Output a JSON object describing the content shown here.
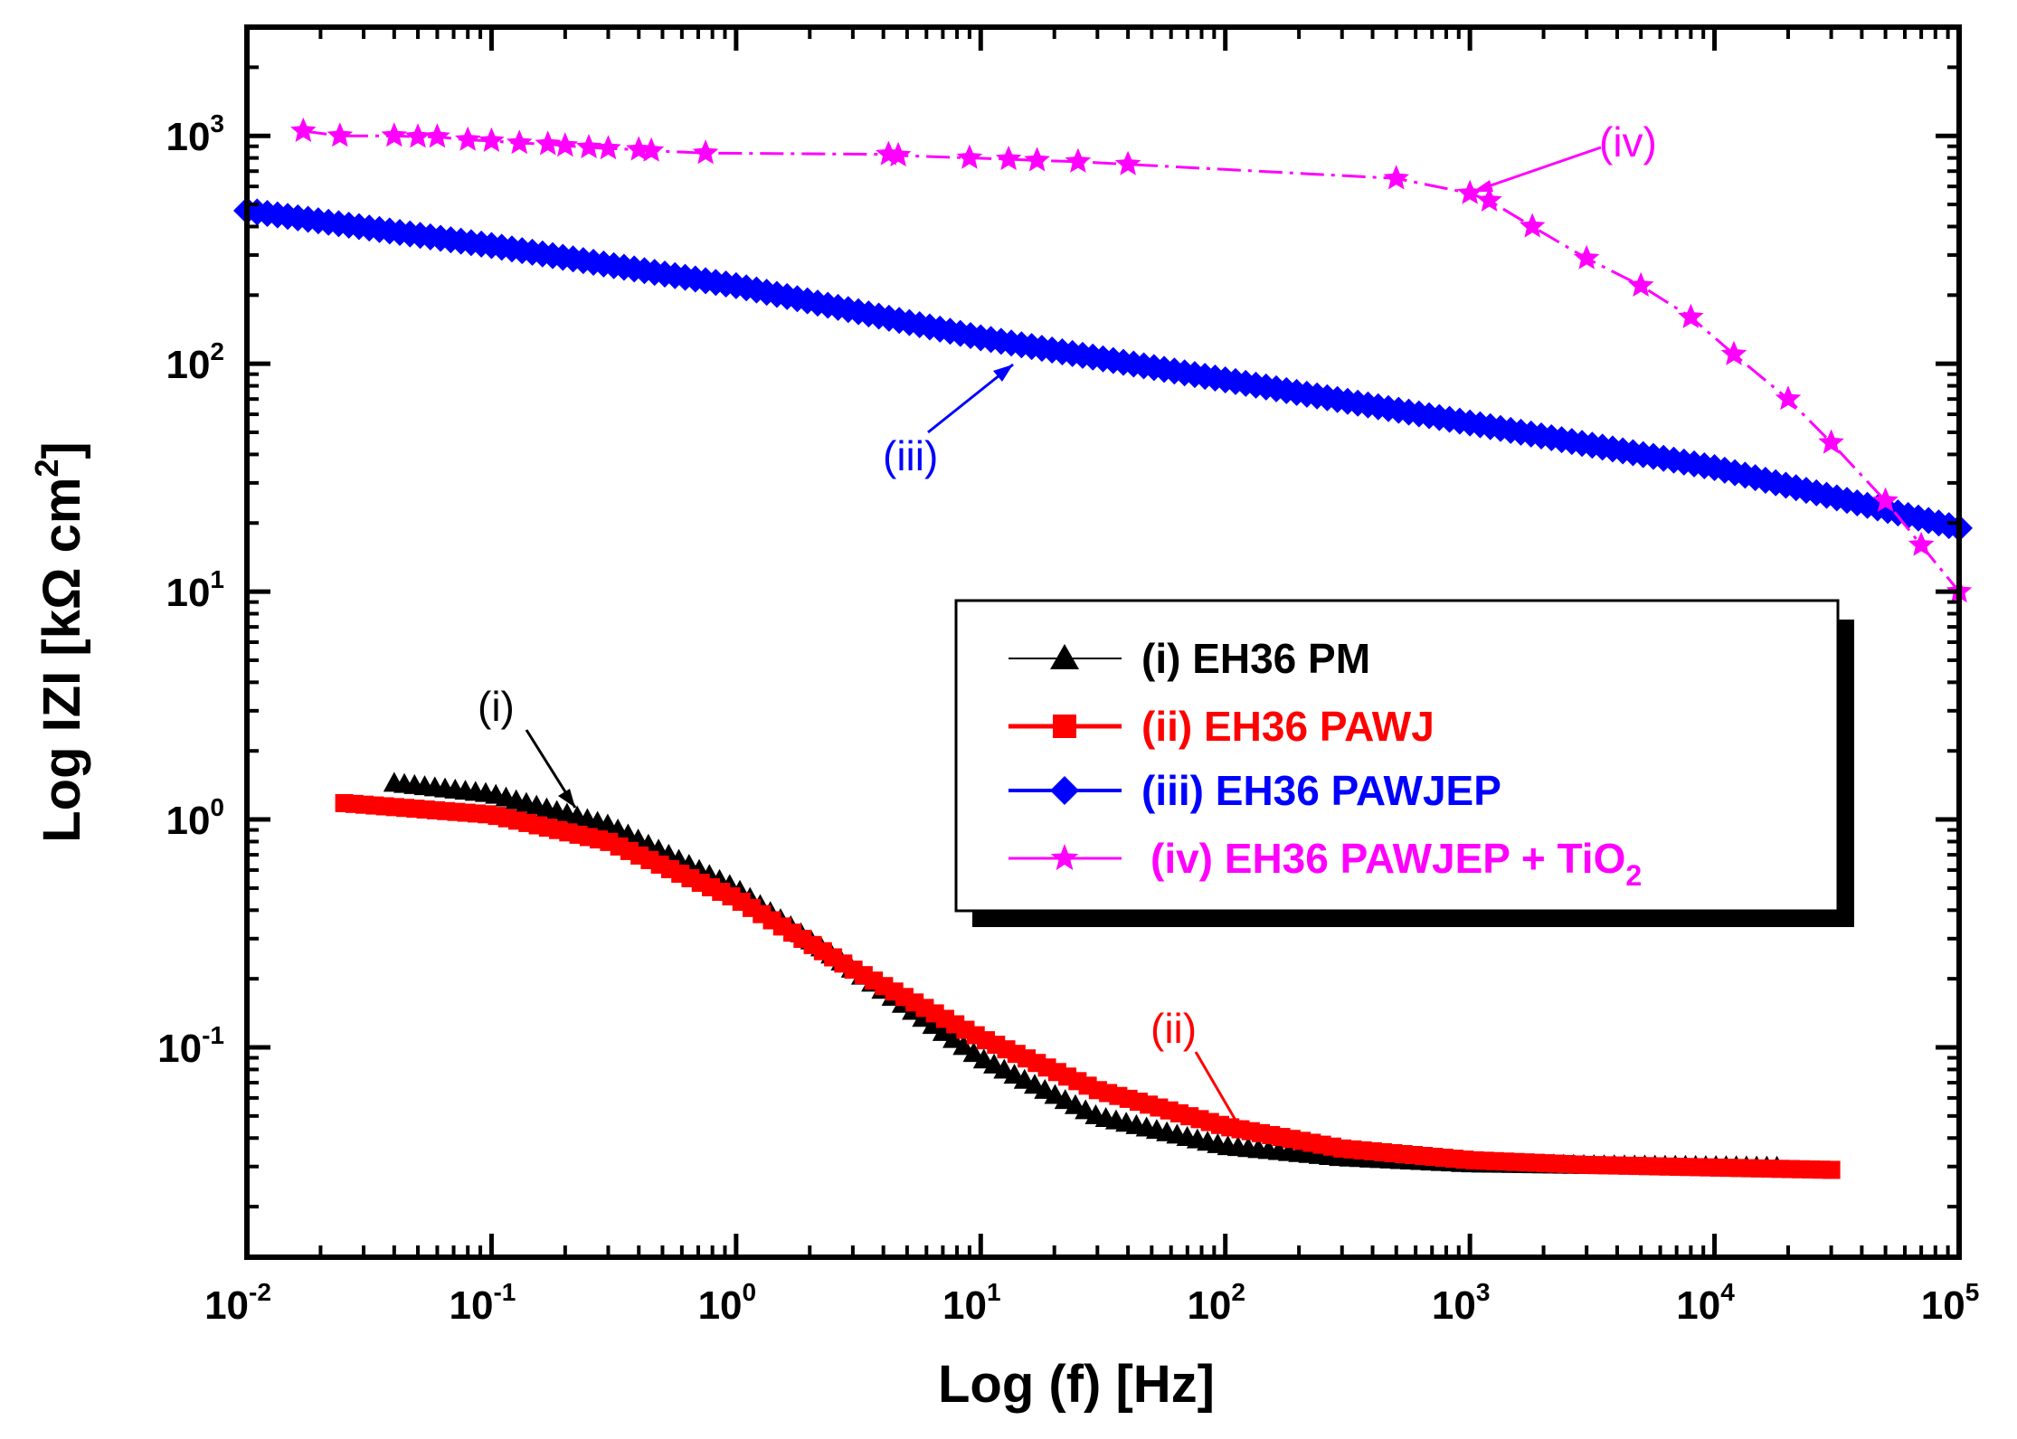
{
  "chart_data": {
    "type": "scatter",
    "xlabel": "Log (f) [Hz]",
    "ylabel": "Log IZI [kΩ cm²]",
    "ylabel_parts": {
      "main": "Log IZI [kΩ cm",
      "sup": "2",
      "close": "]"
    },
    "x_scale": "log",
    "y_scale": "log",
    "xlim": [
      0.01,
      100000
    ],
    "ylim": [
      0.012,
      3000
    ],
    "grid": false,
    "legend_position": "center-right",
    "x_ticks": [
      {
        "base": "10",
        "exp": "-2",
        "value": 0.01
      },
      {
        "base": "10",
        "exp": "-1",
        "value": 0.1
      },
      {
        "base": "10",
        "exp": "0",
        "value": 1
      },
      {
        "base": "10",
        "exp": "1",
        "value": 10
      },
      {
        "base": "10",
        "exp": "2",
        "value": 100
      },
      {
        "base": "10",
        "exp": "3",
        "value": 1000
      },
      {
        "base": "10",
        "exp": "4",
        "value": 10000
      },
      {
        "base": "10",
        "exp": "5",
        "value": 100000
      }
    ],
    "y_ticks": [
      {
        "base": "10",
        "exp": "-1",
        "value": 0.1
      },
      {
        "base": "10",
        "exp": "0",
        "value": 1
      },
      {
        "base": "10",
        "exp": "1",
        "value": 10
      },
      {
        "base": "10",
        "exp": "2",
        "value": 100
      },
      {
        "base": "10",
        "exp": "3",
        "value": 1000
      }
    ],
    "series": [
      {
        "name": "(i) EH36 PM",
        "color": "#000000",
        "marker": "triangle",
        "x": [
          0.04,
          0.1,
          0.3,
          1,
          3,
          10,
          30,
          100,
          300,
          1000,
          3000,
          10000,
          18000
        ],
        "y": [
          1.45,
          1.3,
          0.95,
          0.5,
          0.22,
          0.09,
          0.05,
          0.037,
          0.033,
          0.031,
          0.0305,
          0.0302,
          0.03
        ]
      },
      {
        "name": "(ii) EH36 PAWJ",
        "color": "#ff0000",
        "marker": "square",
        "x": [
          0.025,
          0.1,
          0.3,
          1,
          3,
          10,
          30,
          100,
          300,
          1000,
          3000,
          10000,
          30000
        ],
        "y": [
          1.18,
          1.05,
          0.8,
          0.45,
          0.22,
          0.11,
          0.065,
          0.045,
          0.036,
          0.032,
          0.0305,
          0.0297,
          0.029
        ]
      },
      {
        "name": "(iii) EH36 PAWJEP",
        "color": "#0000ff",
        "marker": "diamond",
        "x": [
          0.01,
          0.1,
          1,
          10,
          100,
          1000,
          10000,
          100000
        ],
        "y": [
          470,
          330,
          220,
          130,
          85,
          55,
          35,
          19
        ]
      },
      {
        "name": "(iv) EH36 PAWJEP + TiO",
        "name_sub": "2",
        "color": "#ff00ff",
        "marker": "star",
        "x": [
          0.017,
          0.024,
          0.04,
          0.05,
          0.06,
          0.08,
          0.1,
          0.13,
          0.17,
          0.2,
          0.25,
          0.3,
          0.4,
          0.45,
          0.75,
          4.2,
          4.6,
          9,
          13,
          17,
          25,
          40,
          500,
          1000,
          1200,
          1800,
          3000,
          5000,
          8000,
          12000,
          20000,
          30000,
          50000,
          70000,
          100000
        ],
        "y": [
          1050,
          1000,
          1000,
          990,
          990,
          960,
          950,
          930,
          920,
          905,
          890,
          880,
          870,
          860,
          840,
          830,
          820,
          800,
          790,
          780,
          770,
          750,
          650,
          560,
          520,
          400,
          290,
          220,
          160,
          110,
          70,
          45,
          25,
          16,
          10
        ]
      }
    ],
    "annotations": [
      {
        "text": "(i)",
        "color": "#000000"
      },
      {
        "text": "(ii)",
        "color": "#ff0000"
      },
      {
        "text": "(iii)",
        "color": "#0000ff"
      },
      {
        "text": "(iv)",
        "color": "#ff00ff"
      }
    ]
  }
}
